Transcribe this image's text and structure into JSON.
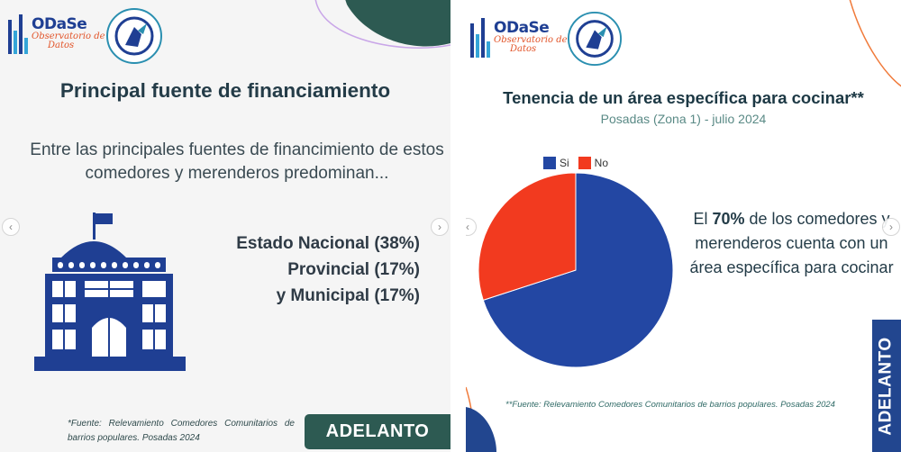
{
  "left_slide": {
    "logo": {
      "title": "ODaSe",
      "subtitle_line1": "Observatorio de",
      "subtitle_line2": "Datos"
    },
    "title": "Principal fuente de financiamiento",
    "intro": "Entre las principales fuentes de financimiento de estos comedores y merenderos predominan...",
    "icon": "government-building-icon",
    "sources": [
      "Estado Nacional (38%)",
      "Provincial (17%)",
      "y Municipal (17%)"
    ],
    "footnote": "*Fuente: Relevamiento Comedores Comunitarios de barrios populares. Posadas 2024",
    "next_label": "ADELANTO"
  },
  "right_slide": {
    "logo": {
      "title": "ODaSe",
      "subtitle_line1": "Observatorio de",
      "subtitle_line2": "Datos"
    },
    "title": "Tenencia de un área específica para cocinar**",
    "subtitle": "Posadas (Zona 1) - julio 2024",
    "stat_prefix": "El ",
    "stat_highlight": "70%",
    "stat_rest": " de los comedores y merenderos cuenta con un área específica para cocinar",
    "footnote": "**Fuente: Relevamiento Comedores Comunitarios de barrios populares. Posadas 2024",
    "next_label": "ADELANTO"
  },
  "chart_data": {
    "type": "pie",
    "categories": [
      "Si",
      "No"
    ],
    "values": [
      70,
      30
    ],
    "colors": [
      "#2347a3",
      "#f23a1f"
    ],
    "legend_position": "top-left"
  },
  "colors": {
    "brand_blue": "#1f3f93",
    "brand_orange": "#e2552a",
    "adelanto_green": "#2d5a52",
    "adelanto_blue": "#22468f"
  },
  "nav": {
    "prev_icon": "chevron-left-icon",
    "next_icon": "chevron-right-icon",
    "prev_glyph": "‹",
    "next_glyph": "›"
  }
}
